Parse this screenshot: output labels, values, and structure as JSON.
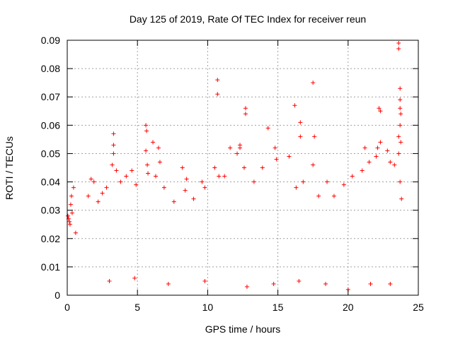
{
  "chart_data": {
    "type": "scatter",
    "title": "Day 125 of 2019, Rate Of TEC Index for receiver reun",
    "xlabel": "GPS time / hours",
    "ylabel": "ROTI / TECUs",
    "xlim": [
      0,
      25
    ],
    "ylim": [
      0,
      0.09
    ],
    "x_ticks": [
      0,
      5,
      10,
      15,
      20,
      25
    ],
    "y_ticks": [
      0,
      0.01,
      0.02,
      0.03,
      0.04,
      0.05,
      0.06,
      0.07,
      0.08,
      0.09
    ],
    "x_tick_labels": [
      "0",
      "5",
      "10",
      "15",
      "20",
      "25"
    ],
    "y_tick_labels": [
      "0",
      "0.01",
      "0.02",
      "0.03",
      "0.04",
      "0.05",
      "0.06",
      "0.07",
      "0.08",
      "0.09"
    ],
    "grid": true,
    "marker": "+",
    "color": "#ff0000",
    "series": [
      {
        "points": [
          [
            0.05,
            0.028
          ],
          [
            0.1,
            0.027
          ],
          [
            0.15,
            0.026
          ],
          [
            0.2,
            0.025
          ],
          [
            0.25,
            0.032
          ],
          [
            0.3,
            0.035
          ],
          [
            0.35,
            0.029
          ],
          [
            0.45,
            0.038
          ],
          [
            0.6,
            0.022
          ],
          [
            1.5,
            0.035
          ],
          [
            1.7,
            0.041
          ],
          [
            1.9,
            0.04
          ],
          [
            2.2,
            0.033
          ],
          [
            2.5,
            0.036
          ],
          [
            2.8,
            0.038
          ],
          [
            3.3,
            0.057
          ],
          [
            3.3,
            0.053
          ],
          [
            3.3,
            0.05
          ],
          [
            3.2,
            0.046
          ],
          [
            3.5,
            0.044
          ],
          [
            3.8,
            0.04
          ],
          [
            4.2,
            0.042
          ],
          [
            4.6,
            0.044
          ],
          [
            4.9,
            0.039
          ],
          [
            5.6,
            0.06
          ],
          [
            5.65,
            0.058
          ],
          [
            5.6,
            0.051
          ],
          [
            5.7,
            0.046
          ],
          [
            5.75,
            0.043
          ],
          [
            6.1,
            0.054
          ],
          [
            6.5,
            0.052
          ],
          [
            6.6,
            0.047
          ],
          [
            6.3,
            0.042
          ],
          [
            6.9,
            0.038
          ],
          [
            7.6,
            0.033
          ],
          [
            8.2,
            0.045
          ],
          [
            8.5,
            0.041
          ],
          [
            8.4,
            0.037
          ],
          [
            9.0,
            0.034
          ],
          [
            9.6,
            0.04
          ],
          [
            9.8,
            0.038
          ],
          [
            10.7,
            0.076
          ],
          [
            10.7,
            0.071
          ],
          [
            10.5,
            0.045
          ],
          [
            10.8,
            0.042
          ],
          [
            11.2,
            0.042
          ],
          [
            11.6,
            0.052
          ],
          [
            12.1,
            0.05
          ],
          [
            12.3,
            0.052
          ],
          [
            12.3,
            0.053
          ],
          [
            12.7,
            0.066
          ],
          [
            12.7,
            0.064
          ],
          [
            12.6,
            0.045
          ],
          [
            13.3,
            0.04
          ],
          [
            13.9,
            0.045
          ],
          [
            14.3,
            0.059
          ],
          [
            14.8,
            0.052
          ],
          [
            14.9,
            0.048
          ],
          [
            15.8,
            0.049
          ],
          [
            16.2,
            0.067
          ],
          [
            16.3,
            0.038
          ],
          [
            16.6,
            0.056
          ],
          [
            16.6,
            0.061
          ],
          [
            16.8,
            0.04
          ],
          [
            17.5,
            0.075
          ],
          [
            17.6,
            0.056
          ],
          [
            17.5,
            0.046
          ],
          [
            17.9,
            0.035
          ],
          [
            18.5,
            0.04
          ],
          [
            19.0,
            0.035
          ],
          [
            19.7,
            0.039
          ],
          [
            20.3,
            0.042
          ],
          [
            20.0,
            0.002
          ],
          [
            21.0,
            0.044
          ],
          [
            21.2,
            0.052
          ],
          [
            21.5,
            0.047
          ],
          [
            22.0,
            0.049
          ],
          [
            22.1,
            0.052
          ],
          [
            22.2,
            0.066
          ],
          [
            22.3,
            0.065
          ],
          [
            22.3,
            0.054
          ],
          [
            22.8,
            0.051
          ],
          [
            23.0,
            0.047
          ],
          [
            23.3,
            0.046
          ],
          [
            23.6,
            0.089
          ],
          [
            23.6,
            0.087
          ],
          [
            23.7,
            0.073
          ],
          [
            23.7,
            0.069
          ],
          [
            23.7,
            0.066
          ],
          [
            23.75,
            0.064
          ],
          [
            23.7,
            0.06
          ],
          [
            23.6,
            0.056
          ],
          [
            23.75,
            0.054
          ],
          [
            23.6,
            0.05
          ],
          [
            23.7,
            0.04
          ],
          [
            23.8,
            0.034
          ],
          [
            3.0,
            0.005
          ],
          [
            4.8,
            0.006
          ],
          [
            7.2,
            0.004
          ],
          [
            9.8,
            0.005
          ],
          [
            12.8,
            0.003
          ],
          [
            14.7,
            0.004
          ],
          [
            16.5,
            0.005
          ],
          [
            18.4,
            0.004
          ],
          [
            21.6,
            0.004
          ],
          [
            23.0,
            0.004
          ]
        ]
      }
    ]
  }
}
